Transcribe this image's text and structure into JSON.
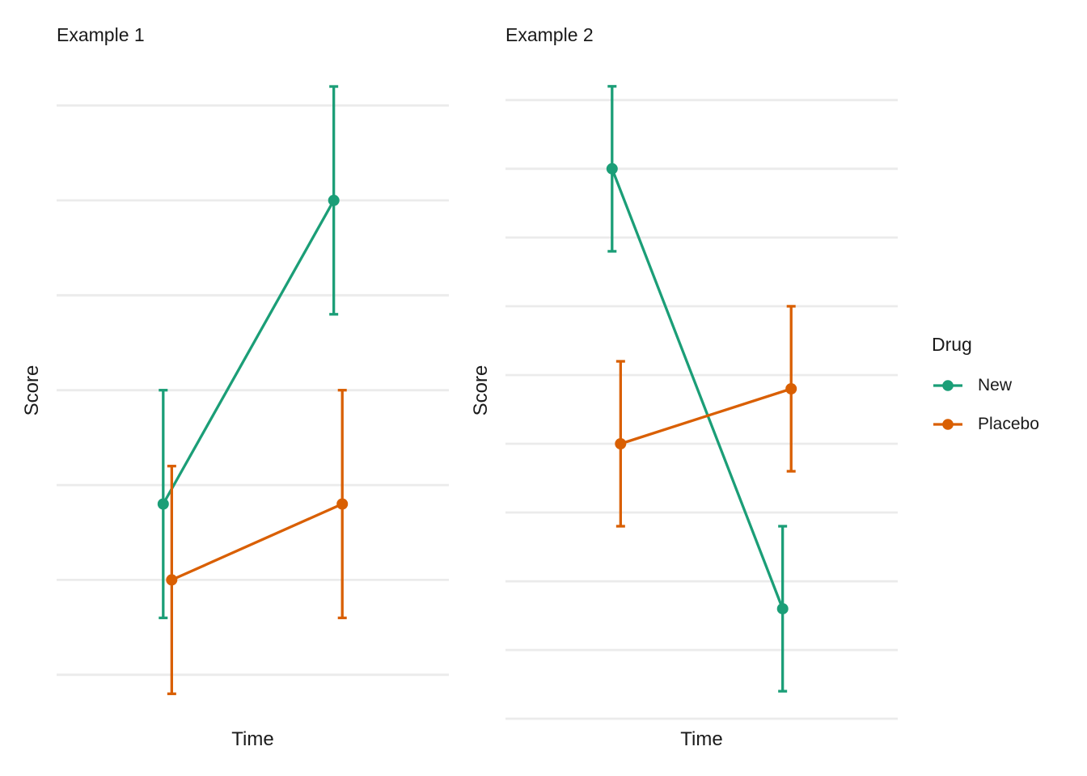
{
  "figure": {
    "background": "#FFFFFF",
    "grid_color": "#EBEBEB",
    "text_color": "#1A1A1A",
    "legend": {
      "title": "Drug",
      "position": "right",
      "items": [
        {
          "label": "New",
          "color": "#1B9E77"
        },
        {
          "label": "Placebo",
          "color": "#D95F02"
        }
      ]
    }
  },
  "chart_data": [
    {
      "type": "line",
      "title": "Example 1",
      "xlabel": "Time",
      "ylabel": "Score",
      "x_tick_labels_visible": false,
      "y_tick_labels_visible": false,
      "grid": true,
      "xlim": [
        0.35,
        2.65
      ],
      "ylim": [
        0.53,
        7.26
      ],
      "gridlines_y": [
        1,
        2,
        3,
        4,
        5,
        6,
        7
      ],
      "series": [
        {
          "name": "New",
          "color": "#1B9E77",
          "x_offset": -0.025,
          "points": [
            {
              "x": 1,
              "y": 2.8,
              "ci_low": 1.6,
              "ci_high": 4.0
            },
            {
              "x": 2,
              "y": 6.0,
              "ci_low": 4.8,
              "ci_high": 7.2
            }
          ]
        },
        {
          "name": "Placebo",
          "color": "#D95F02",
          "x_offset": 0.025,
          "points": [
            {
              "x": 1,
              "y": 2.0,
              "ci_low": 0.8,
              "ci_high": 3.2
            },
            {
              "x": 2,
              "y": 2.8,
              "ci_low": 1.6,
              "ci_high": 4.0
            }
          ]
        }
      ]
    },
    {
      "type": "line",
      "title": "Example 2",
      "xlabel": "Time",
      "ylabel": "Score",
      "x_tick_labels_visible": false,
      "y_tick_labels_visible": false,
      "grid": true,
      "xlim": [
        0.35,
        2.65
      ],
      "ylim": [
        0.99,
        10.28
      ],
      "gridlines_y": [
        1,
        2,
        3,
        4,
        5,
        6,
        7,
        8,
        9,
        10
      ],
      "series": [
        {
          "name": "New",
          "color": "#1B9E77",
          "x_offset": -0.025,
          "points": [
            {
              "x": 1,
              "y": 9.0,
              "ci_low": 7.8,
              "ci_high": 10.2
            },
            {
              "x": 2,
              "y": 2.6,
              "ci_low": 1.4,
              "ci_high": 3.8
            }
          ]
        },
        {
          "name": "Placebo",
          "color": "#D95F02",
          "x_offset": 0.025,
          "points": [
            {
              "x": 1,
              "y": 5.0,
              "ci_low": 3.8,
              "ci_high": 6.2
            },
            {
              "x": 2,
              "y": 5.8,
              "ci_low": 4.6,
              "ci_high": 7.0
            }
          ]
        }
      ]
    }
  ]
}
